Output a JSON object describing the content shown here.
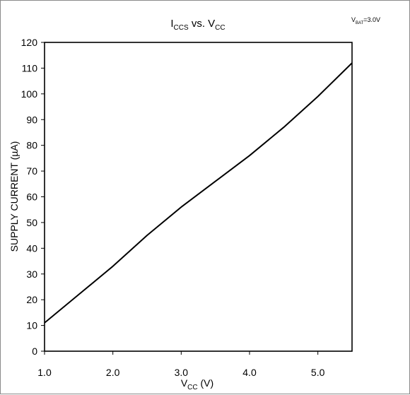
{
  "chart_data": {
    "type": "line",
    "title": {
      "main": "I",
      "main_sub": "CCS",
      "mid": " vs. V",
      "mid_sub": "CC"
    },
    "annotation": {
      "main": "V",
      "sub": "BAT",
      "rest": "=3.0V"
    },
    "xlabel": {
      "main": "V",
      "sub": "CC",
      "rest": " (V)"
    },
    "ylabel": "SUPPLY CURRENT (µA)",
    "xlim": [
      1.0,
      5.5
    ],
    "ylim": [
      0,
      120
    ],
    "x_ticks": [
      1.0,
      2.0,
      3.0,
      4.0,
      5.0
    ],
    "x_tick_labels": [
      "1.0",
      "2.0",
      "3.0",
      "4.0",
      "5.0"
    ],
    "y_ticks": [
      0,
      10,
      20,
      30,
      40,
      50,
      60,
      70,
      80,
      90,
      100,
      110,
      120
    ],
    "y_tick_labels": [
      "0",
      "10",
      "20",
      "30",
      "40",
      "50",
      "60",
      "70",
      "80",
      "90",
      "100",
      "110",
      "120"
    ],
    "grid": false,
    "series": [
      {
        "color": "#000000",
        "x": [
          1.0,
          1.5,
          2.0,
          2.5,
          3.0,
          3.5,
          4.0,
          4.5,
          5.0,
          5.5
        ],
        "y": [
          11,
          22,
          33,
          45,
          56,
          66,
          76,
          87,
          99,
          112
        ]
      }
    ]
  }
}
